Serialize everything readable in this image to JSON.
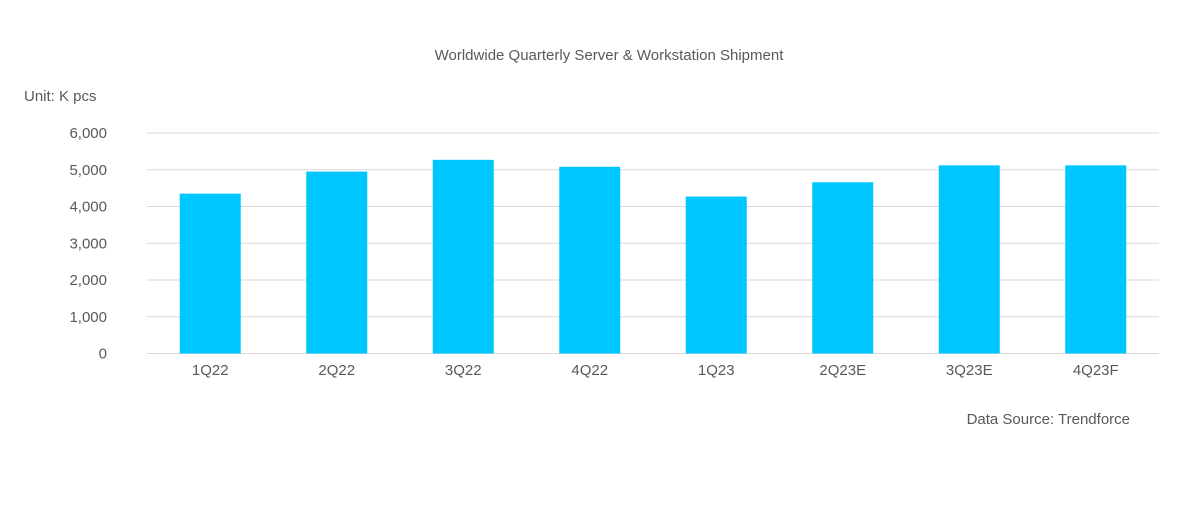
{
  "chart_data": {
    "type": "bar",
    "title": "Worldwide Quarterly Server & Workstation Shipment",
    "unit_label": "Unit: K pcs",
    "source_label": "Data Source: Trendforce",
    "categories": [
      "1Q22",
      "2Q22",
      "3Q22",
      "4Q22",
      "1Q23",
      "2Q23E",
      "3Q23E",
      "4Q23F"
    ],
    "values": [
      4350,
      4950,
      5270,
      5080,
      4270,
      4660,
      5120,
      5120
    ],
    "ylim": [
      0,
      6000
    ],
    "y_ticks": [
      0,
      1000,
      2000,
      3000,
      4000,
      5000,
      6000
    ],
    "y_tick_labels": [
      "0",
      "1,000",
      "2,000",
      "3,000",
      "4,000",
      "5,000",
      "6,000"
    ],
    "grid": true,
    "legend": "none",
    "bar_color": "#00C6FF",
    "grid_color": "#D9D9D9",
    "text_color": "#595959"
  }
}
